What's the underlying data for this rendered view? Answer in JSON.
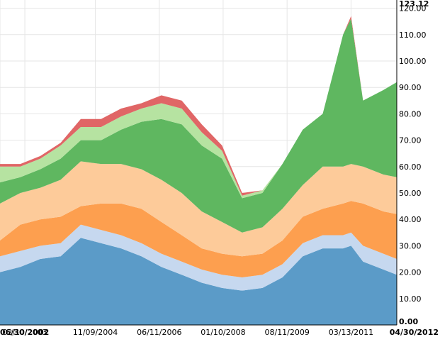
{
  "chart_data": {
    "type": "area",
    "stacked": true,
    "grid": true,
    "legend": "none",
    "ylim": [
      0,
      123.12
    ],
    "y_ticks": [
      "0.00",
      "10.00",
      "20.00",
      "30.00",
      "40.00",
      "50.00",
      "60.00",
      "70.00",
      "80.00",
      "90.00",
      "100.00",
      "110.00",
      "120.00"
    ],
    "y_max_label": "123.12",
    "x_range": [
      "06/30/2002",
      "04/30/2012"
    ],
    "x_ticks": [
      "06/30/2002",
      "02/10/2003",
      "11/09/2004",
      "06/11/2006",
      "01/10/2008",
      "08/11/2009",
      "03/13/2011",
      "04/30/2012"
    ],
    "x": [
      "06/30/2002",
      "12/31/2002",
      "06/30/2003",
      "12/31/2003",
      "06/30/2004",
      "12/31/2004",
      "06/30/2005",
      "12/31/2005",
      "06/30/2006",
      "12/31/2006",
      "06/30/2007",
      "12/31/2007",
      "06/30/2008",
      "12/31/2008",
      "06/30/2009",
      "12/31/2009",
      "06/30/2010",
      "12/31/2010",
      "03/13/2011",
      "06/30/2011",
      "12/31/2011",
      "04/30/2012"
    ],
    "series": [
      {
        "color": "#5b9bc8",
        "values": [
          20,
          22,
          25,
          26,
          33,
          31,
          29,
          26,
          22,
          19,
          16,
          14,
          13,
          14,
          18,
          26,
          29,
          29,
          30,
          24,
          21,
          19
        ]
      },
      {
        "color": "#c6d8ef",
        "values": [
          6,
          6,
          5,
          5,
          5,
          5,
          5,
          5,
          5,
          5,
          5,
          5,
          5,
          5,
          5,
          5,
          5,
          5,
          5,
          6,
          6,
          6
        ]
      },
      {
        "color": "#fd9f4f",
        "values": [
          6,
          10,
          10,
          10,
          7,
          10,
          12,
          13,
          12,
          10,
          8,
          8,
          8,
          8,
          9,
          10,
          10,
          12,
          12,
          16,
          16,
          17
        ]
      },
      {
        "color": "#fdcb9a",
        "values": [
          14,
          12,
          12,
          14,
          17,
          15,
          15,
          15,
          16,
          16,
          14,
          12,
          9,
          10,
          12,
          12,
          16,
          14,
          14,
          14,
          14,
          14
        ]
      },
      {
        "color": "#5fb760",
        "values": [
          8,
          6,
          7,
          8,
          8,
          9,
          13,
          18,
          23,
          26,
          25,
          24,
          13,
          13,
          17,
          21,
          20,
          50,
          55,
          25,
          32,
          36
        ]
      },
      {
        "color": "#b6e3a1",
        "values": [
          6,
          4,
          4,
          5,
          5,
          5,
          5,
          5,
          6,
          6,
          5,
          3,
          1,
          1,
          0,
          0,
          0,
          0,
          0,
          0,
          0,
          0
        ]
      },
      {
        "color": "#e06666",
        "values": [
          1,
          1,
          1,
          1,
          3,
          3,
          3,
          2,
          3,
          3,
          3,
          2,
          1,
          0,
          0,
          0,
          0,
          0,
          1,
          0,
          0,
          0
        ]
      }
    ]
  }
}
